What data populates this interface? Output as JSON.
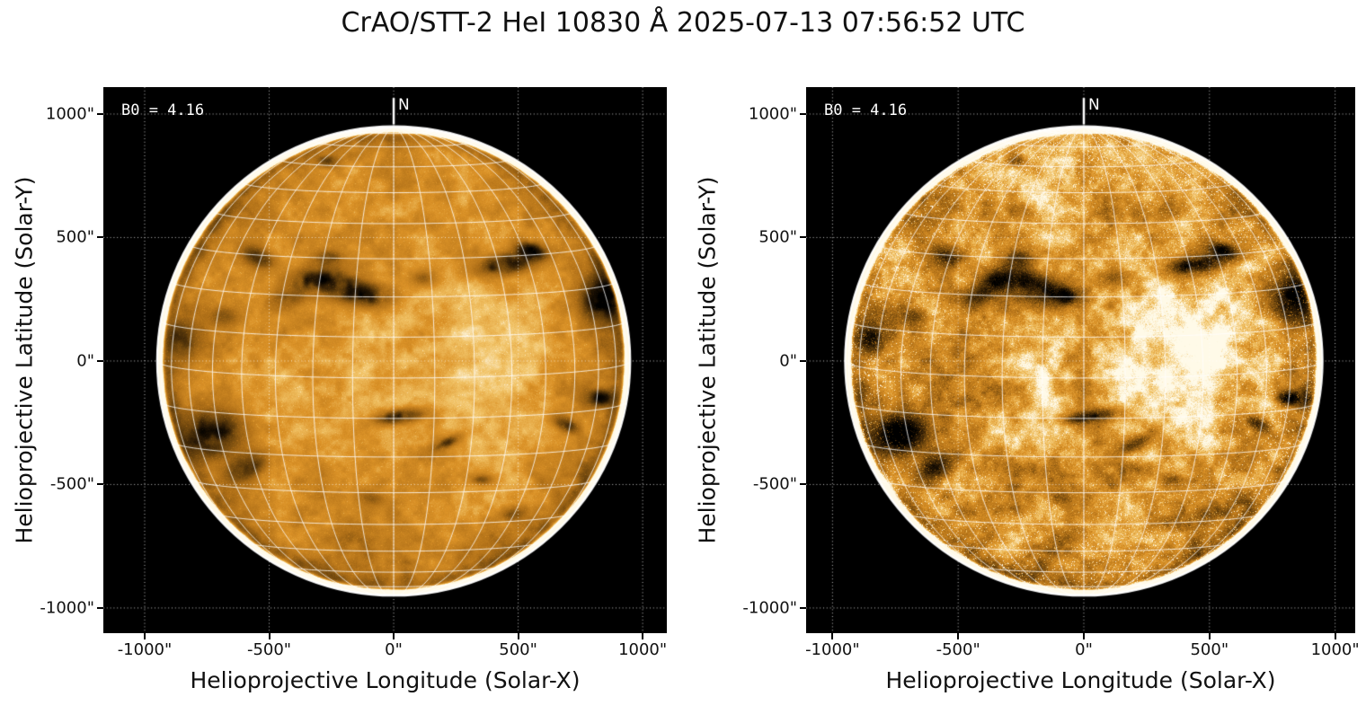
{
  "figure": {
    "title": "CrAO/STT-2 HeI 10830 Å 2025-07-13 07:56:52 UTC",
    "background": "#ffffff"
  },
  "colors": {
    "plot_background": "#000000",
    "axis_text": "#111111",
    "annotation_text": "#ffffff",
    "grid_line": "#ffffff",
    "limb_ring": "#ffffff",
    "disk_palette_stops": [
      {
        "t": 0.0,
        "hex": "#000000"
      },
      {
        "t": 0.16,
        "hex": "#261705"
      },
      {
        "t": 0.34,
        "hex": "#69430d"
      },
      {
        "t": 0.52,
        "hex": "#b07018"
      },
      {
        "t": 0.7,
        "hex": "#dc9328"
      },
      {
        "t": 0.84,
        "hex": "#f2c468"
      },
      {
        "t": 1.0,
        "hex": "#fffae8"
      }
    ]
  },
  "chart_data": [
    {
      "type": "heatmap",
      "panel": "left",
      "variant": "smooth",
      "description": "HeI 10830 Å full-disk image, smooth display",
      "xlabel": "Helioprojective Longitude (Solar-X)",
      "ylabel": "Helioprojective Latitude (Solar-Y)",
      "xlim": [
        -1166,
        1097
      ],
      "ylim": [
        -1102,
        1109
      ],
      "xticks": [
        {
          "value": -1000,
          "label": "-1000\""
        },
        {
          "value": -500,
          "label": "-500\""
        },
        {
          "value": 0,
          "label": "0\""
        },
        {
          "value": 500,
          "label": "500\""
        },
        {
          "value": 1000,
          "label": "1000\""
        }
      ],
      "yticks": [
        {
          "value": 1000,
          "label": "1000\""
        },
        {
          "value": 500,
          "label": "500\""
        },
        {
          "value": 0,
          "label": "0\""
        },
        {
          "value": -500,
          "label": "-500\""
        },
        {
          "value": -1000,
          "label": "-1000\""
        }
      ],
      "annotations": {
        "b0": "B0 = 4.16",
        "north": "N"
      },
      "b0_deg": 4.16,
      "solar_radius_arcsec": 950,
      "heliographic_grid_step_deg": 10,
      "helioprojective_grid_step_arcsec": 500,
      "grid": true
    },
    {
      "type": "heatmap",
      "panel": "right",
      "variant": "high-contrast",
      "description": "HeI 10830 Å full-disk image, contrast-enhanced display",
      "xlabel": "Helioprojective Longitude (Solar-X)",
      "ylabel": "Helioprojective Latitude (Solar-Y)",
      "xlim": [
        -1105,
        1080
      ],
      "ylim": [
        -1102,
        1109
      ],
      "xticks": [
        {
          "value": -1000,
          "label": "-1000\""
        },
        {
          "value": -500,
          "label": "-500\""
        },
        {
          "value": 0,
          "label": "0\""
        },
        {
          "value": 500,
          "label": "500\""
        },
        {
          "value": 1000,
          "label": "1000\""
        }
      ],
      "yticks": [
        {
          "value": 1000,
          "label": "1000\""
        },
        {
          "value": 500,
          "label": "500\""
        },
        {
          "value": 0,
          "label": "0\""
        },
        {
          "value": -500,
          "label": "-500\""
        },
        {
          "value": -1000,
          "label": "-1000\""
        }
      ],
      "annotations": {
        "b0": "B0 = 4.16",
        "north": "N"
      },
      "b0_deg": 4.16,
      "solar_radius_arcsec": 950,
      "heliographic_grid_step_deg": 10,
      "helioprojective_grid_step_arcsec": 500,
      "grid": true
    }
  ],
  "solar_features": {
    "columns": [
      "x_arcsec",
      "y_arcsec",
      "rx_arcsec",
      "ry_arcsec",
      "rotation_deg",
      "depth"
    ],
    "dark_regions": [
      [
        -330,
        330,
        100,
        52,
        20,
        0.42
      ],
      [
        -195,
        295,
        115,
        58,
        -10,
        0.5
      ],
      [
        -75,
        260,
        80,
        42,
        0,
        0.36
      ],
      [
        -430,
        250,
        68,
        40,
        10,
        0.3
      ],
      [
        -545,
        420,
        78,
        46,
        -25,
        0.32
      ],
      [
        -260,
        420,
        60,
        35,
        0,
        0.28
      ],
      [
        445,
        390,
        120,
        44,
        10,
        0.55
      ],
      [
        550,
        450,
        65,
        32,
        -15,
        0.42
      ],
      [
        835,
        250,
        85,
        100,
        0,
        0.5
      ],
      [
        885,
        420,
        60,
        48,
        0,
        0.4
      ],
      [
        -730,
        -295,
        120,
        88,
        12,
        0.52
      ],
      [
        -590,
        -430,
        90,
        52,
        30,
        0.36
      ],
      [
        25,
        -225,
        100,
        28,
        8,
        0.52
      ],
      [
        205,
        -335,
        75,
        24,
        25,
        0.38
      ],
      [
        825,
        -150,
        62,
        34,
        0,
        0.45
      ],
      [
        690,
        -255,
        55,
        28,
        -28,
        0.36
      ],
      [
        -845,
        90,
        58,
        68,
        0,
        0.38
      ],
      [
        355,
        -480,
        48,
        24,
        0,
        0.26
      ],
      [
        -265,
        810,
        45,
        28,
        0,
        0.26
      ],
      [
        -680,
        180,
        62,
        42,
        0,
        0.24
      ],
      [
        120,
        335,
        58,
        38,
        0,
        0.24
      ],
      [
        480,
        -620,
        55,
        30,
        10,
        0.22
      ],
      [
        -90,
        -555,
        65,
        35,
        -10,
        0.22
      ]
    ],
    "bright_regions": [
      [
        340,
        60,
        280,
        320,
        0,
        0.09
      ],
      [
        460,
        -60,
        170,
        430,
        0,
        0.08
      ],
      [
        0,
        860,
        430,
        190,
        0,
        0.07
      ],
      [
        -250,
        -60,
        220,
        260,
        0,
        0.04
      ]
    ]
  }
}
